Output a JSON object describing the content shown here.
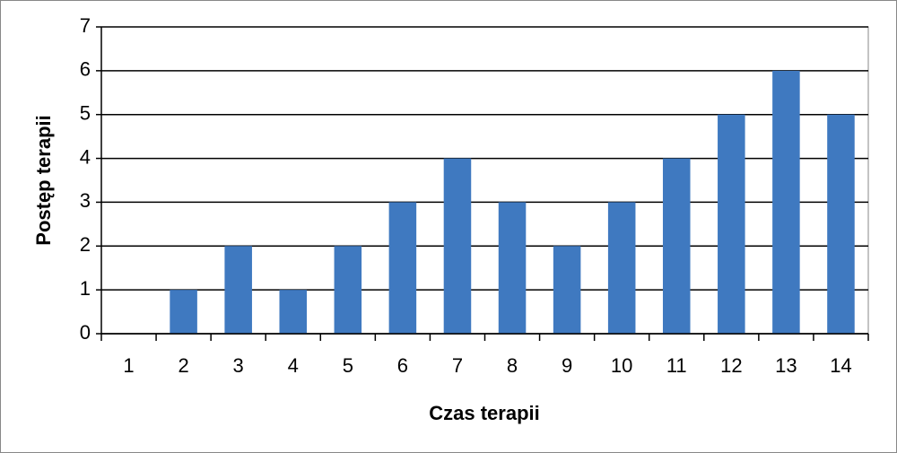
{
  "chart_data": {
    "type": "bar",
    "x_label": "Czas terapii",
    "y_label": "Postęp terapii",
    "categories": [
      "1",
      "2",
      "3",
      "4",
      "5",
      "6",
      "7",
      "8",
      "9",
      "10",
      "11",
      "12",
      "13",
      "14"
    ],
    "values": [
      0,
      1,
      2,
      1,
      2,
      3,
      4,
      3,
      2,
      3,
      4,
      5,
      6,
      5
    ],
    "color": "#3f79c0",
    "ylim": [
      0,
      7
    ],
    "yticks": [
      0,
      1,
      2,
      3,
      4,
      5,
      6,
      7
    ],
    "grid": true
  }
}
